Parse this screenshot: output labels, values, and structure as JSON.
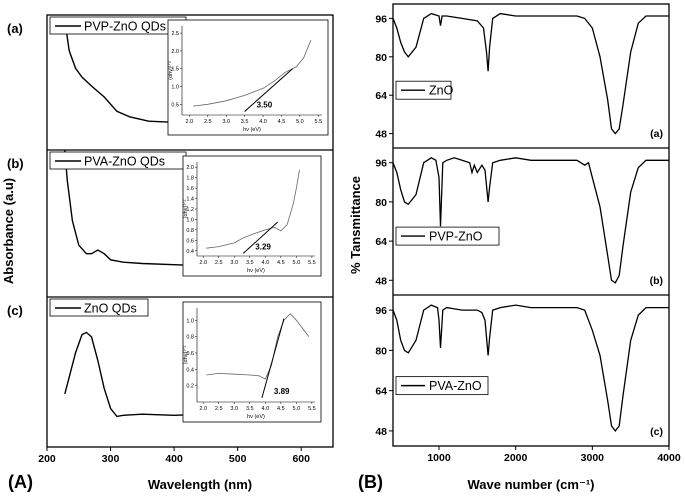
{
  "figure_labels": {
    "left": "(A)",
    "right": "(B)"
  },
  "chart_data": [
    {
      "id": "A",
      "type": "line",
      "xlabel": "Wavelength (nm)",
      "ylabel": "Absorbance (a.u)",
      "xlim": [
        200,
        650
      ],
      "xticks": [
        "200",
        "300",
        "400",
        "500",
        "600"
      ],
      "panels": [
        {
          "tag": "(a)",
          "legend": "PVP-ZnO QDs",
          "series": [
            {
              "x": [
                228,
                235,
                245,
                255,
                270,
                290,
                310,
                330,
                360,
                400,
                450,
                500,
                550,
                600
              ],
              "y": [
                1.0,
                0.72,
                0.56,
                0.48,
                0.4,
                0.3,
                0.17,
                0.12,
                0.08,
                0.07,
                0.065,
                0.06,
                0.055,
                0.05
              ]
            }
          ],
          "inset": {
            "xlabel": "hν (eV)",
            "ylabel": "(αhν)¹ᐟ²",
            "xlim": [
              1.8,
              5.6
            ],
            "ylim": [
              0.2,
              2.7
            ],
            "xticks": [
              "2.0",
              "2.5",
              "3.0",
              "3.5",
              "4.0",
              "4.5",
              "5.0",
              "5.5"
            ],
            "yticks": [
              "0.5",
              "1.0",
              "1.5",
              "2.0",
              "2.5"
            ],
            "curve_x": [
              2.1,
              2.5,
              3.0,
              3.5,
              4.0,
              4.3,
              4.6,
              4.9,
              5.1,
              5.3
            ],
            "curve_y": [
              0.45,
              0.5,
              0.6,
              0.75,
              0.95,
              1.15,
              1.4,
              1.55,
              1.8,
              2.3
            ],
            "fit_x": [
              3.5,
              4.8
            ],
            "fit_y": [
              0.3,
              1.5
            ],
            "band_gap": "3.50"
          }
        },
        {
          "tag": "(b)",
          "legend": "PVA-ZnO QDs",
          "series": [
            {
              "x": [
                228,
                232,
                240,
                250,
                262,
                270,
                280,
                290,
                300,
                320,
                350,
                400,
                450,
                500,
                550,
                600
              ],
              "y": [
                1.0,
                0.75,
                0.42,
                0.22,
                0.15,
                0.15,
                0.18,
                0.15,
                0.1,
                0.08,
                0.07,
                0.06,
                0.05,
                0.045,
                0.04,
                0.04
              ]
            }
          ],
          "inset": {
            "xlabel": "hν (eV)",
            "ylabel": "(αhν)¹ᐟ²",
            "xlim": [
              1.8,
              5.6
            ],
            "ylim": [
              0.3,
              2.1
            ],
            "xticks": [
              "2.0",
              "2.5",
              "3.0",
              "3.5",
              "4.0",
              "4.5",
              "5.0",
              "5.5"
            ],
            "yticks": [
              "0.4",
              "0.6",
              "0.8",
              "1.0",
              "1.2",
              "1.4",
              "1.6",
              "1.8",
              "2.0"
            ],
            "curve_x": [
              2.1,
              2.5,
              3.0,
              3.3,
              3.6,
              4.0,
              4.3,
              4.5,
              4.7,
              4.9,
              5.0,
              5.1
            ],
            "curve_y": [
              0.45,
              0.48,
              0.55,
              0.65,
              0.72,
              0.8,
              0.85,
              0.78,
              0.9,
              1.3,
              1.6,
              1.95
            ],
            "fit_x": [
              3.29,
              4.4
            ],
            "fit_y": [
              0.35,
              0.95
            ],
            "band_gap": "3.29"
          }
        },
        {
          "tag": "(c)",
          "legend": "ZnO QDs",
          "series": [
            {
              "x": [
                228,
                235,
                245,
                255,
                262,
                270,
                280,
                290,
                300,
                310,
                320,
                350,
                400,
                450,
                500,
                550,
                600
              ],
              "y": [
                0.25,
                0.4,
                0.62,
                0.78,
                0.8,
                0.76,
                0.55,
                0.3,
                0.12,
                0.05,
                0.06,
                0.07,
                0.06,
                0.07,
                0.08,
                0.09,
                0.08
              ]
            }
          ],
          "inset": {
            "xlabel": "hν (eV)",
            "ylabel": "(αhν)¹ᐟ²",
            "xlim": [
              1.8,
              5.6
            ],
            "ylim": [
              0.0,
              1.15
            ],
            "xticks": [
              "2.0",
              "2.5",
              "3.0",
              "3.5",
              "4.0",
              "4.5",
              "5.0",
              "5.5"
            ],
            "yticks": [
              "0.2",
              "0.4",
              "0.6",
              "0.8",
              "1.0"
            ],
            "curve_x": [
              2.1,
              2.5,
              3.0,
              3.5,
              3.8,
              4.0,
              4.2,
              4.4,
              4.6,
              4.8,
              5.0,
              5.2,
              5.4
            ],
            "curve_y": [
              0.33,
              0.35,
              0.34,
              0.33,
              0.32,
              0.28,
              0.45,
              0.8,
              1.0,
              1.08,
              1.0,
              0.9,
              0.8
            ],
            "fit_x": [
              3.89,
              4.6
            ],
            "fit_y": [
              0.05,
              1.02
            ],
            "band_gap": "3.89"
          }
        }
      ]
    },
    {
      "id": "B",
      "type": "line",
      "xlabel": "Wave number (cm⁻¹)",
      "ylabel": "% Tansmittance",
      "xlim": [
        400,
        4000
      ],
      "xticks": [
        "1000",
        "2000",
        "3000",
        "4000"
      ],
      "ylim": [
        42,
        102
      ],
      "yticks": [
        "48",
        "64",
        "80",
        "96"
      ],
      "panels": [
        {
          "tag": "(a)",
          "legend": "ZnO",
          "series": [
            {
              "x": [
                400,
                450,
                500,
                550,
                600,
                700,
                800,
                900,
                1000,
                1020,
                1040,
                1100,
                1300,
                1500,
                1580,
                1620,
                1640,
                1660,
                1700,
                1800,
                2000,
                2200,
                2400,
                2600,
                2800,
                2900,
                3000,
                3100,
                3200,
                3250,
                3300,
                3350,
                3400,
                3500,
                3600,
                3700,
                3800,
                3900,
                4000
              ],
              "y": [
                96,
                92,
                86,
                82,
                80,
                84,
                96,
                98,
                97,
                93,
                97,
                97,
                96,
                95,
                92,
                82,
                74,
                84,
                96,
                98,
                97,
                97,
                97,
                97,
                97,
                96,
                92,
                80,
                62,
                50,
                48,
                50,
                60,
                82,
                94,
                97,
                97,
                97,
                97
              ]
            }
          ]
        },
        {
          "tag": "(b)",
          "legend": "PVP-ZnO",
          "series": [
            {
              "x": [
                400,
                450,
                500,
                550,
                600,
                700,
                800,
                900,
                960,
                1000,
                1020,
                1050,
                1100,
                1200,
                1300,
                1400,
                1430,
                1460,
                1500,
                1560,
                1600,
                1640,
                1660,
                1700,
                1800,
                2000,
                2200,
                2400,
                2600,
                2800,
                2850,
                2900,
                2950,
                3000,
                3100,
                3200,
                3250,
                3300,
                3350,
                3400,
                3500,
                3600,
                3700,
                3800,
                4000
              ],
              "y": [
                96,
                92,
                85,
                80,
                79,
                83,
                96,
                98,
                97,
                90,
                70,
                96,
                97,
                98,
                97,
                96,
                92,
                95,
                92,
                95,
                93,
                80,
                86,
                96,
                97,
                98,
                97,
                97,
                97,
                97,
                96,
                95,
                96,
                90,
                78,
                58,
                48,
                47,
                50,
                62,
                84,
                94,
                97,
                97,
                97
              ]
            }
          ]
        },
        {
          "tag": "(c)",
          "legend": "PVA-ZnO",
          "series": [
            {
              "x": [
                400,
                450,
                500,
                550,
                600,
                700,
                800,
                900,
                980,
                1000,
                1020,
                1050,
                1100,
                1300,
                1400,
                1500,
                1560,
                1600,
                1640,
                1660,
                1700,
                1800,
                2000,
                2200,
                2400,
                2600,
                2800,
                2900,
                2950,
                3000,
                3100,
                3200,
                3250,
                3300,
                3350,
                3400,
                3500,
                3600,
                3700,
                3800,
                4000
              ],
              "y": [
                96,
                92,
                84,
                80,
                79,
                84,
                96,
                98,
                97,
                92,
                81,
                96,
                97,
                96,
                96,
                96,
                95,
                92,
                78,
                85,
                96,
                97,
                98,
                97,
                97,
                97,
                97,
                96,
                92,
                88,
                78,
                60,
                50,
                48,
                50,
                62,
                84,
                94,
                97,
                97,
                97
              ]
            }
          ]
        }
      ]
    }
  ]
}
